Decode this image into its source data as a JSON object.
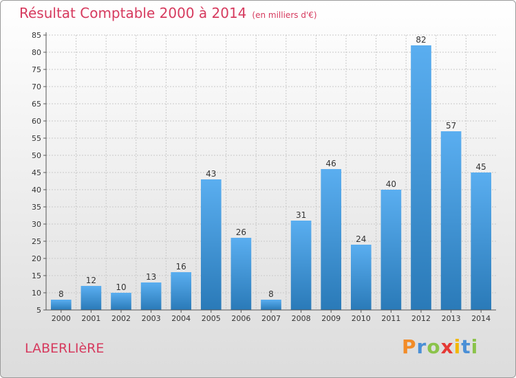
{
  "header": {
    "title": "Résultat Comptable 2000 à 2014",
    "subtitle": "(en milliers d'€)"
  },
  "footer": {
    "commune": "LABERLIèRE",
    "logo_letters": [
      "P",
      "r",
      "o",
      "x",
      "i",
      "t",
      "i"
    ],
    "logo_colors": [
      "#f28c28",
      "#4a8fd6",
      "#8bc34a",
      "#e53935",
      "#f2b705",
      "#4a8fd6",
      "#8bc34a"
    ]
  },
  "chart_data": {
    "type": "bar",
    "categories": [
      "2000",
      "2001",
      "2002",
      "2003",
      "2004",
      "2005",
      "2006",
      "2007",
      "2008",
      "2009",
      "2010",
      "2011",
      "2012",
      "2013",
      "2014"
    ],
    "values": [
      8,
      12,
      10,
      13,
      16,
      43,
      26,
      8,
      31,
      46,
      24,
      40,
      82,
      57,
      45
    ],
    "ylim": [
      5,
      85
    ],
    "yticks": [
      5,
      10,
      15,
      20,
      25,
      30,
      35,
      40,
      45,
      50,
      55,
      60,
      65,
      70,
      75,
      80,
      85
    ],
    "grid": true,
    "bar_color_top": "#5aaef0",
    "bar_color_bottom": "#2a7ab8"
  }
}
